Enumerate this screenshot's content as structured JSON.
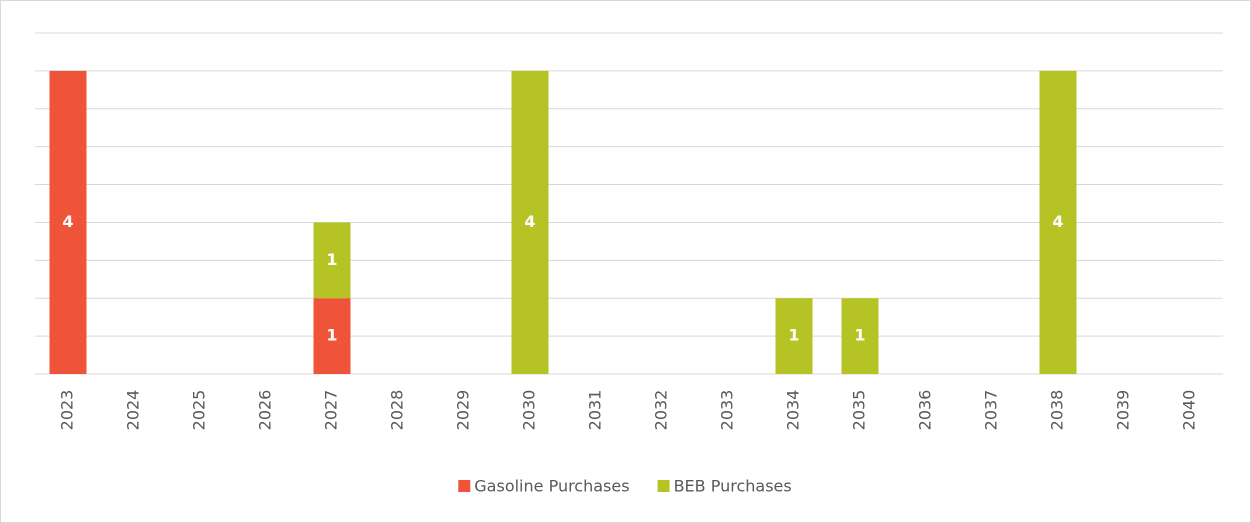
{
  "chart_data": {
    "type": "bar",
    "stacked": true,
    "categories": [
      "2023",
      "2024",
      "2025",
      "2026",
      "2027",
      "2028",
      "2029",
      "2030",
      "2031",
      "2032",
      "2033",
      "2034",
      "2035",
      "2036",
      "2037",
      "2038",
      "2039",
      "2040"
    ],
    "series": [
      {
        "name": "Gasoline Purchases",
        "color": "#ef5339",
        "values": [
          4,
          0,
          0,
          0,
          1,
          0,
          0,
          0,
          0,
          0,
          0,
          0,
          0,
          0,
          0,
          0,
          0,
          0
        ]
      },
      {
        "name": "BEB Purchases",
        "color": "#b5c424",
        "values": [
          0,
          0,
          0,
          0,
          1,
          0,
          0,
          4,
          0,
          0,
          0,
          1,
          1,
          0,
          0,
          4,
          0,
          0
        ]
      }
    ],
    "ylim": [
      0,
      4.5
    ],
    "yticks": [
      0,
      0.5,
      1,
      1.5,
      2,
      2.5,
      3,
      3.5,
      4,
      4.5
    ],
    "grid": true,
    "legend": "bottom"
  }
}
